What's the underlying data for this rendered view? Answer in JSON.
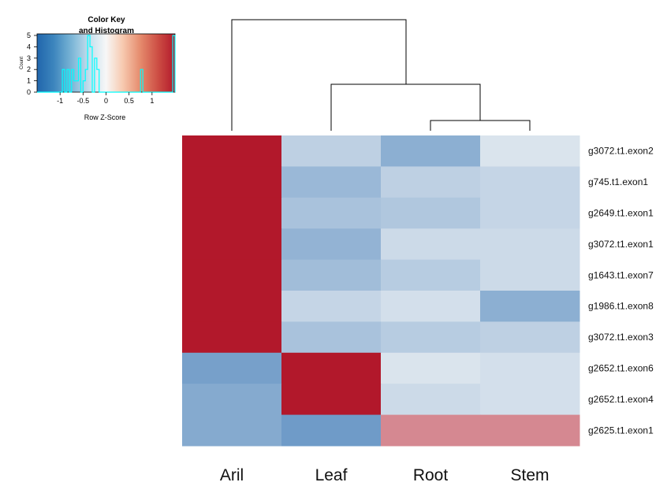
{
  "chart_data": {
    "type": "heatmap",
    "columns": [
      "Aril",
      "Leaf",
      "Root",
      "Stem"
    ],
    "rows": [
      "g3072.t1.exon2",
      "g745.t1.exon1",
      "g2649.t1.exon1",
      "g3072.t1.exon1",
      "g1643.t1.exon7",
      "g1986.t1.exon8",
      "g3072.t1.exon3",
      "g2652.t1.exon6",
      "g2652.t1.exon4",
      "g2625.t1.exon1"
    ],
    "values": [
      [
        1.5,
        -0.4,
        -0.75,
        -0.2
      ],
      [
        1.5,
        -0.65,
        -0.4,
        -0.35
      ],
      [
        1.5,
        -0.55,
        -0.5,
        -0.35
      ],
      [
        1.5,
        -0.7,
        -0.3,
        -0.3
      ],
      [
        1.5,
        -0.6,
        -0.45,
        -0.3
      ],
      [
        1.5,
        -0.35,
        -0.25,
        -0.75
      ],
      [
        1.5,
        -0.55,
        -0.45,
        -0.4
      ],
      [
        -0.9,
        1.5,
        -0.2,
        -0.25
      ],
      [
        -0.8,
        1.5,
        -0.3,
        -0.25
      ],
      [
        -0.8,
        -0.95,
        0.75,
        0.75
      ]
    ],
    "color_scale": {
      "low": "#2166ac",
      "mid": "#f7f7f7",
      "high": "#b2182b",
      "range": [
        -1.5,
        1.5
      ]
    },
    "column_dendrogram": "(Aril,(Leaf,(Root,Stem)))",
    "color_key": {
      "title_line1": "Color Key",
      "title_line2": "and Histogram",
      "xlabel": "Row Z-Score",
      "ylabel": "Count",
      "x_ticks": [
        "-1",
        "-0.5",
        "0",
        "0.5",
        "1"
      ],
      "y_ticks": [
        "0",
        "1",
        "2",
        "3",
        "4",
        "5"
      ],
      "histogram_color": "#00ffff"
    }
  }
}
